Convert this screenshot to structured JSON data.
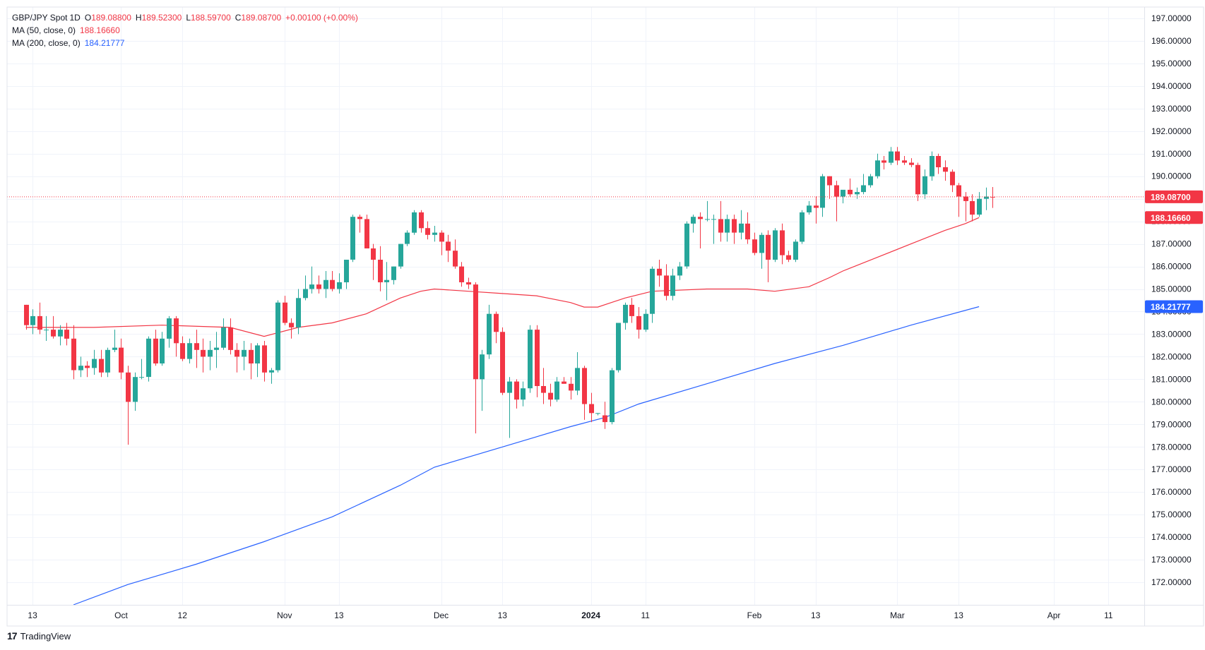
{
  "legend": {
    "symbol": "GBP/JPY Spot",
    "interval": "1D",
    "o_label": "O",
    "o": "189.08800",
    "h_label": "H",
    "h": "189.52300",
    "l_label": "L",
    "l": "188.59700",
    "c_label": "C",
    "c": "189.08700",
    "change": "+0.00100 (+0.00%)",
    "ma50_label": "MA (50, close, 0)",
    "ma50_value": "188.16660",
    "ma200_label": "MA (200, close, 0)",
    "ma200_value": "184.21777"
  },
  "brand": {
    "logo": "17",
    "name": "TradingView"
  },
  "colors": {
    "up": "#26a69a",
    "down": "#f23645",
    "ma50": "#f23645",
    "ma200": "#2962ff",
    "grid": "#f0f3fa",
    "axis_text": "#131722"
  },
  "chart_data": {
    "type": "candlestick",
    "title": "GBP/JPY Spot, 1D",
    "ylim": [
      171.0,
      197.5
    ],
    "y_ticks": [
      "172.00000",
      "173.00000",
      "174.00000",
      "175.00000",
      "176.00000",
      "177.00000",
      "178.00000",
      "179.00000",
      "180.00000",
      "181.00000",
      "182.00000",
      "183.00000",
      "184.00000",
      "185.00000",
      "186.00000",
      "187.00000",
      "188.00000",
      "189.00000",
      "190.00000",
      "191.00000",
      "192.00000",
      "193.00000",
      "194.00000",
      "195.00000",
      "196.00000",
      "197.00000"
    ],
    "x_ticks": [
      {
        "label": "13",
        "bar": 1
      },
      {
        "label": "Oct",
        "bar": 14
      },
      {
        "label": "12",
        "bar": 23
      },
      {
        "label": "Nov",
        "bar": 38
      },
      {
        "label": "13",
        "bar": 46
      },
      {
        "label": "Dec",
        "bar": 61
      },
      {
        "label": "13",
        "bar": 70
      },
      {
        "label": "2024",
        "bar": 83,
        "bold": true
      },
      {
        "label": "11",
        "bar": 91
      },
      {
        "label": "Feb",
        "bar": 107
      },
      {
        "label": "13",
        "bar": 116
      },
      {
        "label": "Mar",
        "bar": 128
      },
      {
        "label": "13",
        "bar": 137
      },
      {
        "label": "Apr",
        "bar": 151
      },
      {
        "label": "11",
        "bar": 159
      }
    ],
    "price_labels": [
      {
        "label": "189.08700",
        "value": 189.087,
        "color": "#f23645"
      },
      {
        "label": "188.16660",
        "value": 188.1666,
        "color": "#f23645"
      },
      {
        "label": "184.21777",
        "value": 184.21777,
        "color": "#2962ff"
      }
    ],
    "last_price": 189.087,
    "candles": [
      [
        184.3,
        184.3,
        183.2,
        183.4
      ],
      [
        183.4,
        184.1,
        183.0,
        183.8
      ],
      [
        183.8,
        184.4,
        183.0,
        183.2
      ],
      [
        183.2,
        183.8,
        182.7,
        183.2
      ],
      [
        183.2,
        183.8,
        182.8,
        182.9
      ],
      [
        182.9,
        183.4,
        182.5,
        183.2
      ],
      [
        183.2,
        183.5,
        182.5,
        182.8
      ],
      [
        182.8,
        183.4,
        181.0,
        181.4
      ],
      [
        181.4,
        182.0,
        181.1,
        181.6
      ],
      [
        181.6,
        181.8,
        181.1,
        181.5
      ],
      [
        181.5,
        182.3,
        181.2,
        181.9
      ],
      [
        181.9,
        182.3,
        181.1,
        181.3
      ],
      [
        181.3,
        182.4,
        181.1,
        182.3
      ],
      [
        182.3,
        183.2,
        182.2,
        182.4
      ],
      [
        182.4,
        182.8,
        181.0,
        181.3
      ],
      [
        181.3,
        181.6,
        178.1,
        180.0
      ],
      [
        180.0,
        181.3,
        179.6,
        181.1
      ],
      [
        181.1,
        181.9,
        181.0,
        181.1
      ],
      [
        181.1,
        182.9,
        180.9,
        182.8
      ],
      [
        182.8,
        183.2,
        181.6,
        181.7
      ],
      [
        181.7,
        183.1,
        181.6,
        182.8
      ],
      [
        182.8,
        183.8,
        182.4,
        183.7
      ],
      [
        183.7,
        183.8,
        182.0,
        182.6
      ],
      [
        182.6,
        182.9,
        181.8,
        181.9
      ],
      [
        181.9,
        182.8,
        181.7,
        182.6
      ],
      [
        182.6,
        183.2,
        181.5,
        182.3
      ],
      [
        182.3,
        182.8,
        181.3,
        182.0
      ],
      [
        182.0,
        182.7,
        181.4,
        182.3
      ],
      [
        182.3,
        183.1,
        181.5,
        182.4
      ],
      [
        182.4,
        183.7,
        182.3,
        183.3
      ],
      [
        183.3,
        183.7,
        182.1,
        182.3
      ],
      [
        182.3,
        182.6,
        181.3,
        182.0
      ],
      [
        182.0,
        182.7,
        181.4,
        182.3
      ],
      [
        182.3,
        182.6,
        181.0,
        181.7
      ],
      [
        181.7,
        182.6,
        181.1,
        182.5
      ],
      [
        182.5,
        182.7,
        180.9,
        181.3
      ],
      [
        181.3,
        181.5,
        180.8,
        181.4
      ],
      [
        181.4,
        184.5,
        181.3,
        184.4
      ],
      [
        184.4,
        184.7,
        183.4,
        183.5
      ],
      [
        183.5,
        183.7,
        182.8,
        183.3
      ],
      [
        183.3,
        185.0,
        183.0,
        184.6
      ],
      [
        184.6,
        185.6,
        184.5,
        185.0
      ],
      [
        185.0,
        186.0,
        184.8,
        185.2
      ],
      [
        185.2,
        185.6,
        184.8,
        185.0
      ],
      [
        185.0,
        185.8,
        184.6,
        185.4
      ],
      [
        185.4,
        185.8,
        184.9,
        185.0
      ],
      [
        185.0,
        185.7,
        184.8,
        185.3
      ],
      [
        185.3,
        186.3,
        185.0,
        186.3
      ],
      [
        186.3,
        188.3,
        186.2,
        188.2
      ],
      [
        188.2,
        188.3,
        187.5,
        188.1
      ],
      [
        188.1,
        188.3,
        186.9,
        186.8
      ],
      [
        186.8,
        187.0,
        185.4,
        186.3
      ],
      [
        186.3,
        186.9,
        184.9,
        185.3
      ],
      [
        185.3,
        186.2,
        184.5,
        185.4
      ],
      [
        185.4,
        186.0,
        185.2,
        186.0
      ],
      [
        186.0,
        187.0,
        185.9,
        187.0
      ],
      [
        187.0,
        187.6,
        186.9,
        187.5
      ],
      [
        187.5,
        188.5,
        187.4,
        188.4
      ],
      [
        188.4,
        188.5,
        187.5,
        187.7
      ],
      [
        187.7,
        188.0,
        187.2,
        187.4
      ],
      [
        187.4,
        187.8,
        187.1,
        187.5
      ],
      [
        187.5,
        187.6,
        186.5,
        187.1
      ],
      [
        187.1,
        187.4,
        186.2,
        186.7
      ],
      [
        186.7,
        187.2,
        185.9,
        186.0
      ],
      [
        186.0,
        186.2,
        185.1,
        185.3
      ],
      [
        185.3,
        185.5,
        185.0,
        185.2
      ],
      [
        185.2,
        185.3,
        178.6,
        181.0
      ],
      [
        181.0,
        182.3,
        179.6,
        182.1
      ],
      [
        182.1,
        184.3,
        181.9,
        183.9
      ],
      [
        183.9,
        184.0,
        182.6,
        183.1
      ],
      [
        183.1,
        183.3,
        180.3,
        180.4
      ],
      [
        180.4,
        181.1,
        178.4,
        180.9
      ],
      [
        180.9,
        181.0,
        179.7,
        180.1
      ],
      [
        180.1,
        180.9,
        179.8,
        180.6
      ],
      [
        180.6,
        183.4,
        180.4,
        183.2
      ],
      [
        183.2,
        183.4,
        180.2,
        180.7
      ],
      [
        180.7,
        181.5,
        179.9,
        180.4
      ],
      [
        180.4,
        180.8,
        179.8,
        180.1
      ],
      [
        180.1,
        181.1,
        180.0,
        180.9
      ],
      [
        180.9,
        181.1,
        180.8,
        180.8
      ],
      [
        180.8,
        181.1,
        180.1,
        180.5
      ],
      [
        180.5,
        182.2,
        180.3,
        181.5
      ],
      [
        181.5,
        181.6,
        179.2,
        179.9
      ],
      [
        179.9,
        180.4,
        179.1,
        179.5
      ],
      [
        179.5,
        179.5,
        179.4,
        179.5
      ],
      [
        179.4,
        180.0,
        178.8,
        179.1
      ],
      [
        179.1,
        181.5,
        179.0,
        181.4
      ],
      [
        181.4,
        183.5,
        181.3,
        183.5
      ],
      [
        183.5,
        184.4,
        183.2,
        184.3
      ],
      [
        184.3,
        184.6,
        183.5,
        183.8
      ],
      [
        183.8,
        184.2,
        182.8,
        183.2
      ],
      [
        183.2,
        184.1,
        183.1,
        183.9
      ],
      [
        183.9,
        186.0,
        183.5,
        185.9
      ],
      [
        185.9,
        186.3,
        185.1,
        185.6
      ],
      [
        185.6,
        186.1,
        184.5,
        184.7
      ],
      [
        184.7,
        185.9,
        184.5,
        185.6
      ],
      [
        185.6,
        186.2,
        185.4,
        186.0
      ],
      [
        186.0,
        188.0,
        185.9,
        187.9
      ],
      [
        187.9,
        188.3,
        187.5,
        188.2
      ],
      [
        188.2,
        188.4,
        186.8,
        188.1
      ],
      [
        188.1,
        188.9,
        188.0,
        188.1
      ],
      [
        188.1,
        188.3,
        187.0,
        188.1
      ],
      [
        188.1,
        188.9,
        187.1,
        187.5
      ],
      [
        187.5,
        188.3,
        187.1,
        188.1
      ],
      [
        188.1,
        188.3,
        187.0,
        187.5
      ],
      [
        187.5,
        188.5,
        187.2,
        187.9
      ],
      [
        187.9,
        188.4,
        187.0,
        187.2
      ],
      [
        187.2,
        187.5,
        186.5,
        186.6
      ],
      [
        186.6,
        187.5,
        185.9,
        187.4
      ],
      [
        187.4,
        187.6,
        185.3,
        186.3
      ],
      [
        186.3,
        187.7,
        186.2,
        187.6
      ],
      [
        187.6,
        187.9,
        186.1,
        186.5
      ],
      [
        186.5,
        186.7,
        186.2,
        186.3
      ],
      [
        186.3,
        187.2,
        186.2,
        187.1
      ],
      [
        187.1,
        188.5,
        187.0,
        188.4
      ],
      [
        188.4,
        188.9,
        188.3,
        188.7
      ],
      [
        188.7,
        189.1,
        187.9,
        188.6
      ],
      [
        188.6,
        190.1,
        188.2,
        190.0
      ],
      [
        190.0,
        190.0,
        189.0,
        189.6
      ],
      [
        189.6,
        189.8,
        188.0,
        189.1
      ],
      [
        189.1,
        189.3,
        188.8,
        189.4
      ],
      [
        189.4,
        189.9,
        189.1,
        189.2
      ],
      [
        189.2,
        189.5,
        189.0,
        189.3
      ],
      [
        189.3,
        190.1,
        189.2,
        189.6
      ],
      [
        189.6,
        190.1,
        189.5,
        190.0
      ],
      [
        190.0,
        191.0,
        189.9,
        190.7
      ],
      [
        190.7,
        190.9,
        190.3,
        190.6
      ],
      [
        190.6,
        191.3,
        190.5,
        191.1
      ],
      [
        191.1,
        191.3,
        190.5,
        190.7
      ],
      [
        190.7,
        190.9,
        190.5,
        190.6
      ],
      [
        190.6,
        190.8,
        190.4,
        190.5
      ],
      [
        190.5,
        190.6,
        188.9,
        189.2
      ],
      [
        189.2,
        190.3,
        189.0,
        190.0
      ],
      [
        190.0,
        191.1,
        189.8,
        190.9
      ],
      [
        190.9,
        191.0,
        190.1,
        190.4
      ],
      [
        190.4,
        190.7,
        189.8,
        190.2
      ],
      [
        190.2,
        190.3,
        189.3,
        189.6
      ],
      [
        189.6,
        189.7,
        188.2,
        189.1
      ],
      [
        189.1,
        189.3,
        188.0,
        188.9
      ],
      [
        188.9,
        189.2,
        188.0,
        188.3
      ],
      [
        188.3,
        189.3,
        188.2,
        189.0
      ],
      [
        189.0,
        189.5,
        188.5,
        189.1
      ],
      [
        189.088,
        189.523,
        188.597,
        189.087
      ]
    ],
    "ma50": [
      [
        0,
        183.3
      ],
      [
        10,
        183.3
      ],
      [
        20,
        183.4
      ],
      [
        30,
        183.3
      ],
      [
        35,
        182.9
      ],
      [
        40,
        183.3
      ],
      [
        45,
        183.5
      ],
      [
        50,
        183.9
      ],
      [
        55,
        184.6
      ],
      [
        58,
        184.9
      ],
      [
        60,
        185.0
      ],
      [
        65,
        184.9
      ],
      [
        70,
        184.8
      ],
      [
        75,
        184.7
      ],
      [
        80,
        184.4
      ],
      [
        82,
        184.2
      ],
      [
        84,
        184.2
      ],
      [
        86,
        184.4
      ],
      [
        88,
        184.6
      ],
      [
        92,
        184.9
      ],
      [
        100,
        185.0
      ],
      [
        106,
        185.0
      ],
      [
        110,
        184.9
      ],
      [
        115,
        185.1
      ],
      [
        118,
        185.5
      ],
      [
        120,
        185.8
      ],
      [
        125,
        186.4
      ],
      [
        130,
        187.0
      ],
      [
        135,
        187.6
      ],
      [
        138,
        187.9
      ],
      [
        140,
        188.1667
      ]
    ],
    "ma200": [
      [
        7,
        171.0
      ],
      [
        15,
        171.9
      ],
      [
        25,
        172.8
      ],
      [
        35,
        173.8
      ],
      [
        45,
        174.9
      ],
      [
        55,
        176.3
      ],
      [
        60,
        177.1
      ],
      [
        70,
        178.0
      ],
      [
        80,
        178.9
      ],
      [
        85,
        179.3
      ],
      [
        90,
        179.9
      ],
      [
        100,
        180.8
      ],
      [
        110,
        181.7
      ],
      [
        120,
        182.5
      ],
      [
        130,
        183.4
      ],
      [
        140,
        184.2178
      ]
    ]
  }
}
